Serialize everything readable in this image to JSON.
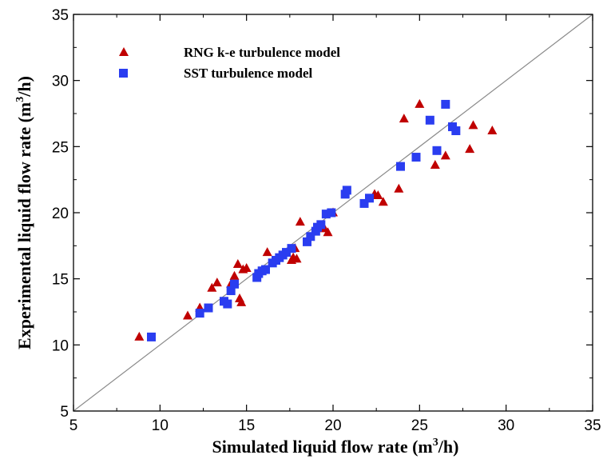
{
  "chart_data": {
    "type": "scatter",
    "title": "",
    "xlabel": "Simulated liquid flow rate (m",
    "xlabel_sup": "3",
    "xlabel_end": "/h)",
    "ylabel": "Experimental liquid flow rate (m",
    "ylabel_sup": "3",
    "ylabel_end": "/h)",
    "xlim": [
      5,
      35
    ],
    "ylim": [
      5,
      35
    ],
    "xticks": [
      5,
      10,
      15,
      20,
      25,
      30,
      35
    ],
    "yticks": [
      5,
      10,
      15,
      20,
      25,
      30,
      35
    ],
    "grid": false,
    "legend_position": "top-left",
    "reference_line": "y = x",
    "series": [
      {
        "name": "RNG k-e turbulence model",
        "marker": "triangle",
        "color": "#c00000",
        "x": [
          8.8,
          11.6,
          12.3,
          13.0,
          13.3,
          14.1,
          14.3,
          14.5,
          14.7,
          14.6,
          14.8,
          15.0,
          16.2,
          17.6,
          17.7,
          17.9,
          17.8,
          18.1,
          19.5,
          19.7,
          20.0,
          22.4,
          22.6,
          22.9,
          23.8,
          24.1,
          25.0,
          25.9,
          26.5,
          27.9,
          28.1,
          29.2
        ],
        "y": [
          10.6,
          12.2,
          12.8,
          14.3,
          14.7,
          14.6,
          15.2,
          16.1,
          13.2,
          13.5,
          15.7,
          15.8,
          17.0,
          16.4,
          16.6,
          16.5,
          17.3,
          19.3,
          18.8,
          18.5,
          20.0,
          21.4,
          21.3,
          20.8,
          21.8,
          27.1,
          28.2,
          23.6,
          24.3,
          24.8,
          26.6,
          26.2
        ]
      },
      {
        "name": "SST turbulence model",
        "marker": "square",
        "color": "#2a3df0",
        "x": [
          9.5,
          12.3,
          12.8,
          13.7,
          13.9,
          14.1,
          14.3,
          15.6,
          15.7,
          15.9,
          16.1,
          16.5,
          16.7,
          16.9,
          17.1,
          17.3,
          17.6,
          18.5,
          18.7,
          19.0,
          19.1,
          19.3,
          19.6,
          19.9,
          20.7,
          20.8,
          21.8,
          22.1,
          23.9,
          24.8,
          25.6,
          26.0,
          26.5,
          26.9,
          27.1
        ],
        "y": [
          10.6,
          12.4,
          12.8,
          13.3,
          13.1,
          14.1,
          14.6,
          15.1,
          15.4,
          15.6,
          15.7,
          16.2,
          16.4,
          16.6,
          16.8,
          17.0,
          17.3,
          17.8,
          18.2,
          18.6,
          18.9,
          19.1,
          19.9,
          20.0,
          21.4,
          21.7,
          20.7,
          21.1,
          23.5,
          24.2,
          27.0,
          24.7,
          28.2,
          26.5,
          26.2
        ]
      }
    ]
  },
  "marker_icons": [
    "triangle-icon",
    "square-icon"
  ]
}
